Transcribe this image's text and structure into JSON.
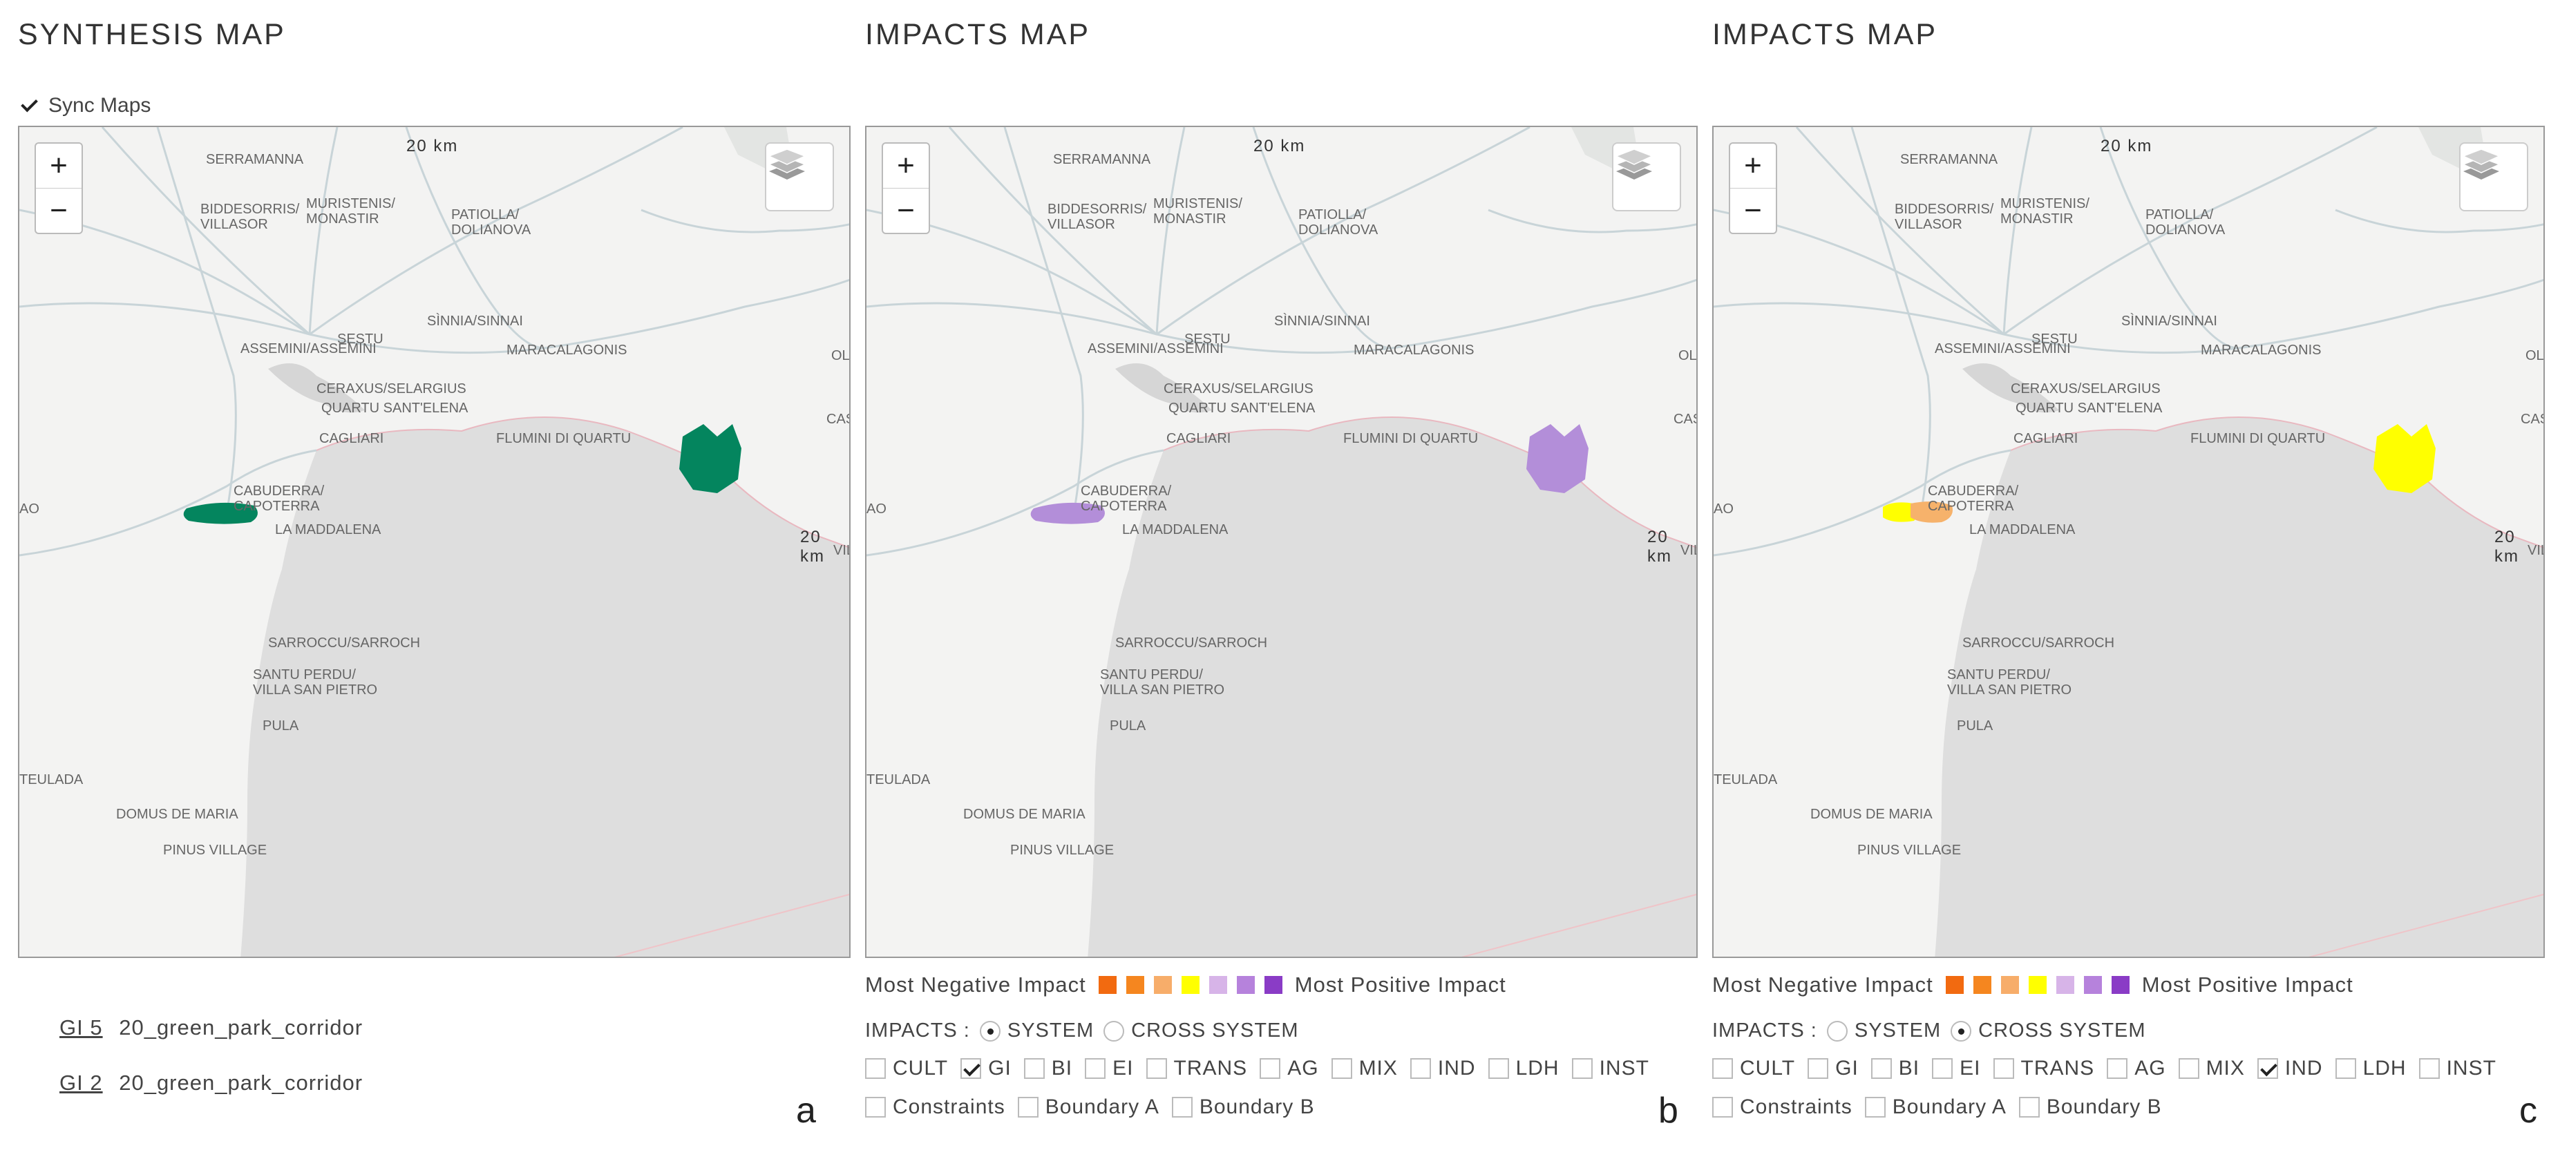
{
  "panels": [
    {
      "title": "SYNTHESIS MAP",
      "sync_label": "Sync Maps",
      "letter": "a",
      "gi_list": [
        {
          "link": "GI 5",
          "name": "20_green_park_corridor"
        },
        {
          "link": "GI 2",
          "name": "20_green_park_corridor"
        }
      ]
    },
    {
      "title": "IMPACTS MAP",
      "letter": "b",
      "impacts_mode": "SYSTEM"
    },
    {
      "title": "IMPACTS MAP",
      "letter": "c",
      "impacts_mode": "CROSS SYSTEM"
    }
  ],
  "map": {
    "scale_label": "20 km",
    "places": [
      "SERRAMANNA",
      "BIDDESORRIS/\nVILLASOR",
      "MURISTENIS/\nMONASTIR",
      "PATIOLLA/\nDOLIANOVA",
      "SÌNNIA/SINNAI",
      "ASSEMINI/ASSEMINI",
      "SESTU",
      "MARACALAGONIS",
      "CERAXUS/SELARGIUS",
      "QUARTU SANT'ELENA",
      "CAGLIARI",
      "FLUMINI DI QUARTU",
      "CABUDERRA/\nCAPOTERRA",
      "LA MADDALENA",
      "SARROCCU/SARROCH",
      "SANTU PERDU/\nVILLA SAN PIETRO",
      "PULA",
      "TEULADA",
      "DOMUS DE MARIA",
      "PINUS VILLAGE",
      "CASTIA",
      "OLI",
      "VILL",
      "AO"
    ],
    "zoom_in": "+",
    "zoom_out": "−"
  },
  "legend": {
    "left": "Most Negative Impact",
    "right": "Most Positive Impact",
    "colors": [
      "#f26a10",
      "#f5861f",
      "#f7ad6a",
      "#ffff00",
      "#d7b4e8",
      "#b682dc",
      "#8a3cc6"
    ]
  },
  "impacts": {
    "label": "IMPACTS :",
    "options": [
      "SYSTEM",
      "CROSS SYSTEM"
    ]
  },
  "categories": [
    "CULT",
    "GI",
    "BI",
    "EI",
    "TRANS",
    "AG",
    "MIX",
    "IND",
    "LDH",
    "INST"
  ],
  "constraints": [
    "Constraints",
    "Boundary A",
    "Boundary B"
  ],
  "checked": {
    "b": "GI",
    "c": "IND"
  },
  "polygon_colors": {
    "a": "#04855e",
    "b": "#b38ed9",
    "c": "#ffff00",
    "c_accent": "#f6b26b"
  }
}
